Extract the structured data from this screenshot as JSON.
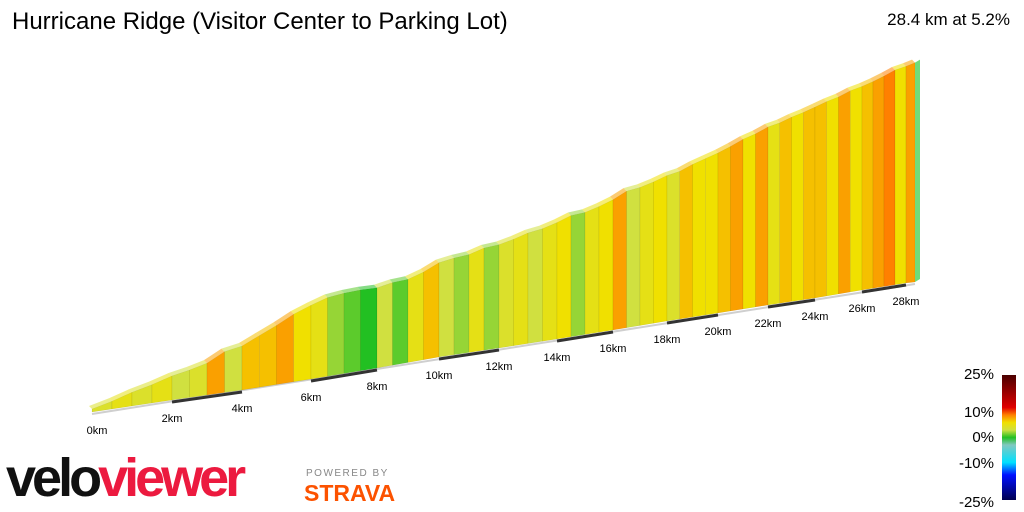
{
  "header": {
    "title": "Hurricane Ridge (Visitor Center to Parking Lot)",
    "summary": "28.4 km at 5.2%"
  },
  "chart_data": {
    "type": "area",
    "title": "Hurricane Ridge (Visitor Center to Parking Lot)",
    "view": "3d-perspective",
    "distance_total_km": 28.4,
    "average_gradient_pct": 5.2,
    "segment_length_km": 0.5,
    "segment_gradients_pct": [
      4,
      5,
      4,
      5,
      3,
      4,
      8,
      3,
      7,
      7,
      8,
      6,
      5,
      2,
      1,
      0,
      3,
      1,
      5,
      7,
      3,
      2,
      5,
      2,
      4,
      5,
      3,
      5,
      6,
      2,
      5,
      6,
      8,
      3,
      5,
      6,
      4,
      7,
      6,
      6,
      7,
      8,
      6,
      8,
      5,
      7,
      6,
      7,
      7,
      6,
      8,
      6,
      7,
      8,
      9,
      6,
      8
    ],
    "x_ticks": [
      "0km",
      "2km",
      "4km",
      "6km",
      "8km",
      "10km",
      "12km",
      "14km",
      "16km",
      "18km",
      "20km",
      "22km",
      "24km",
      "26km",
      "28km"
    ],
    "color_scale": {
      "labels": [
        "25%",
        "10%",
        "0%",
        "-10%",
        "-25%"
      ],
      "stops": [
        {
          "pct": 25,
          "color": "#4a0000"
        },
        {
          "pct": 12,
          "color": "#e00000"
        },
        {
          "pct": 9,
          "color": "#ff8000"
        },
        {
          "pct": 6,
          "color": "#f0e000"
        },
        {
          "pct": 3,
          "color": "#d0e040"
        },
        {
          "pct": 0,
          "color": "#22c022"
        },
        {
          "pct": -3,
          "color": "#80c8c0"
        },
        {
          "pct": -10,
          "color": "#00e0ff"
        },
        {
          "pct": -15,
          "color": "#0010ff"
        },
        {
          "pct": -25,
          "color": "#000050"
        }
      ]
    }
  },
  "branding": {
    "logo_part1": "velo",
    "logo_part2": "viewer",
    "powered_by": "POWERED BY",
    "strava": "STRAVA",
    "logo_colors": {
      "velo": "#111111",
      "viewer": "#ec1a3f",
      "strava": "#fc5200"
    }
  }
}
